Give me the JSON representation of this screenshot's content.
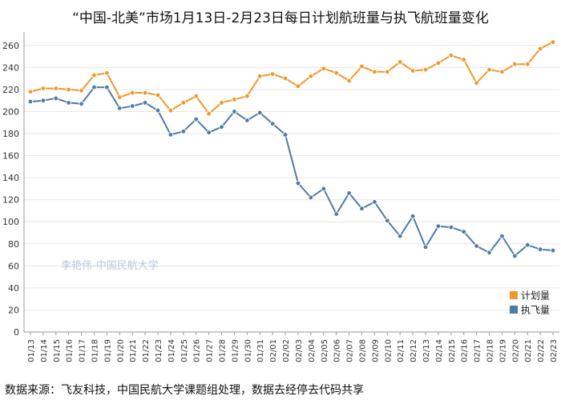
{
  "chart_data": {
    "type": "line",
    "title": "“中国-北美”市场1月13日-2月23日每日计划航班量与执飞航班量变化",
    "ylim": [
      0,
      270
    ],
    "yticks": [
      0,
      20,
      40,
      60,
      80,
      100,
      120,
      140,
      160,
      180,
      200,
      220,
      240,
      260
    ],
    "grid": "horizontal",
    "legend_position": "bottom-right",
    "x": [
      "01/13",
      "01/14",
      "01/15",
      "01/16",
      "01/17",
      "01/18",
      "01/19",
      "01/20",
      "01/21",
      "01/22",
      "01/23",
      "01/24",
      "01/25",
      "01/26",
      "01/27",
      "01/28",
      "01/29",
      "01/30",
      "01/31",
      "02/01",
      "02/02",
      "02/03",
      "02/04",
      "02/05",
      "02/06",
      "02/07",
      "02/08",
      "02/09",
      "02/10",
      "02/11",
      "02/12",
      "02/13",
      "02/14",
      "02/15",
      "02/16",
      "02/17",
      "02/18",
      "02/19",
      "02/20",
      "02/21",
      "02/22",
      "02/23"
    ],
    "series": [
      {
        "name": "计划量",
        "color": "#f0982c",
        "values": [
          218,
          221,
          221,
          220,
          219,
          233,
          235,
          213,
          217,
          217,
          215,
          201,
          208,
          214,
          198,
          208,
          211,
          214,
          232,
          234,
          230,
          223,
          232,
          239,
          235,
          228,
          241,
          236,
          236,
          245,
          237,
          238,
          244,
          251,
          247,
          226,
          238,
          236,
          243,
          243,
          257,
          263
        ]
      },
      {
        "name": "执飞量",
        "color": "#4f7ba8",
        "values": [
          209,
          210,
          212,
          208,
          207,
          222,
          222,
          203,
          205,
          208,
          201,
          179,
          182,
          193,
          181,
          186,
          200,
          192,
          199,
          189,
          179,
          135,
          122,
          130,
          107,
          126,
          112,
          118,
          101,
          87,
          105,
          77,
          96,
          95,
          91,
          78,
          72,
          87,
          69,
          79,
          75,
          74
        ]
      }
    ]
  },
  "watermark": "李艳伟-中国民航大学",
  "source_note": "数据来源：飞友科技，中国民航大学课题组处理，数据去经停去代码共享"
}
